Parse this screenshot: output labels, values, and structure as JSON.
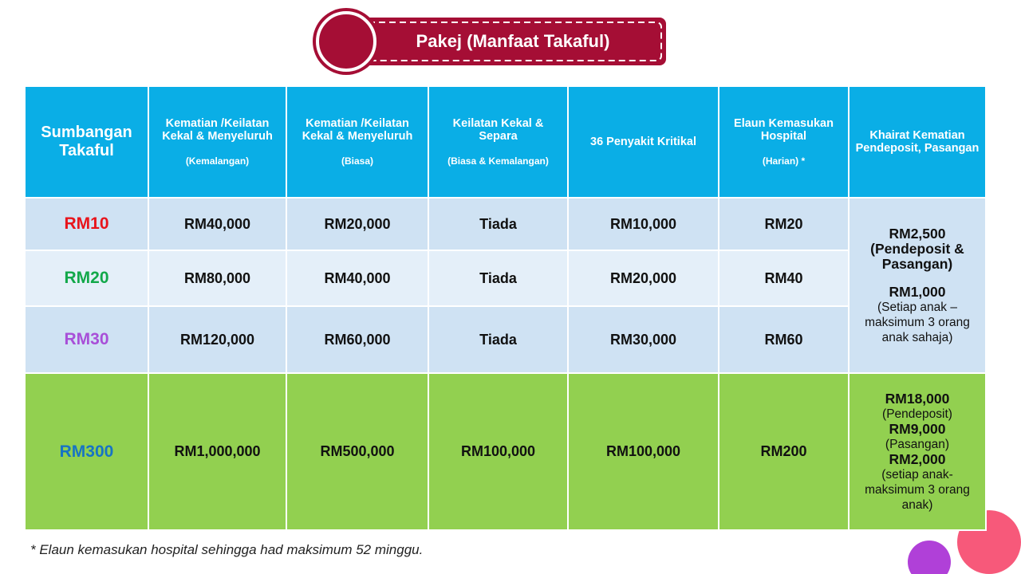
{
  "title": "Pakej (Manfaat Takaful)",
  "table": {
    "header": [
      {
        "text": "Sumbangan Takaful"
      },
      {
        "text": "Kematian /Keilatan Kekal & Menyeluruh",
        "note": "(Kemalangan)"
      },
      {
        "text": "Kematian /Keilatan Kekal & Menyeluruh",
        "note": "(Biasa)"
      },
      {
        "text": "Keilatan Kekal & Separa",
        "note": "(Biasa & Kemalangan)"
      },
      {
        "text": "36 Penyakit Kritikal"
      },
      {
        "text": "Elaun Kemasukan Hospital",
        "note": "(Harian) *"
      },
      {
        "text": "Khairat Kematian Pendeposit, Pasangan"
      }
    ],
    "rows": [
      {
        "color": "#e8141b",
        "fill": "#cfe2f3",
        "cells": [
          "RM10",
          "RM40,000",
          "RM20,000",
          "Tiada",
          "RM10,000",
          "RM20",
          {
            "rowspan": 3,
            "fill": "#cfe2f3",
            "lines": [
              {
                "text": "RM2,500",
                "strong": true
              },
              {
                "text": "(Pendeposit & Pasangan)",
                "strong": true,
                "gap": true
              },
              {
                "text": "RM1,000",
                "strong": true
              },
              {
                "text": "(Setiap anak – maksimum 3 orang anak sahaja)"
              }
            ]
          }
        ]
      },
      {
        "color": "#12a84a",
        "fill": "#e4eff9",
        "cells": [
          "RM20",
          "RM80,000",
          "RM40,000",
          "Tiada",
          "RM20,000",
          "RM40"
        ]
      },
      {
        "color": "#a84fd8",
        "fill": "#cfe2f3",
        "cells": [
          "RM30",
          "RM120,000",
          "RM60,000",
          "Tiada",
          "RM30,000",
          "RM60"
        ]
      },
      {
        "color": "#1774c4",
        "fill": "#92d050",
        "cells": [
          "RM300",
          "RM1,000,000",
          "RM500,000",
          "RM100,000",
          "RM100,000",
          "RM200",
          {
            "fill": "#92d050",
            "lines": [
              {
                "text": "RM18,000",
                "strong": true
              },
              {
                "text": "(Pendeposit)"
              },
              {
                "text": "RM9,000",
                "strong": true
              },
              {
                "text": "(Pasangan)"
              },
              {
                "text": "RM2,000",
                "strong": true
              },
              {
                "text": "(setiap anak- maksimum 3 orang anak)"
              }
            ]
          }
        ]
      }
    ]
  },
  "footnote": "* Elaun kemasukan hospital sehingga had maksimum 52 minggu."
}
